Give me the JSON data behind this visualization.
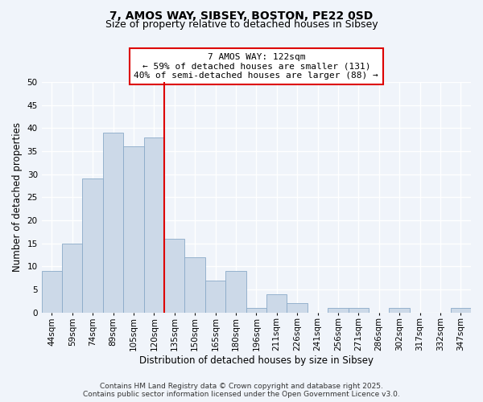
{
  "title": "7, AMOS WAY, SIBSEY, BOSTON, PE22 0SD",
  "subtitle": "Size of property relative to detached houses in Sibsey",
  "xlabel": "Distribution of detached houses by size in Sibsey",
  "ylabel": "Number of detached properties",
  "bar_color": "#ccd9e8",
  "bar_edge_color": "#8aaac8",
  "bin_labels": [
    "44sqm",
    "59sqm",
    "74sqm",
    "89sqm",
    "105sqm",
    "120sqm",
    "135sqm",
    "150sqm",
    "165sqm",
    "180sqm",
    "196sqm",
    "211sqm",
    "226sqm",
    "241sqm",
    "256sqm",
    "271sqm",
    "286sqm",
    "302sqm",
    "317sqm",
    "332sqm",
    "347sqm"
  ],
  "bar_values": [
    9,
    15,
    29,
    39,
    36,
    38,
    16,
    12,
    7,
    9,
    1,
    4,
    2,
    0,
    1,
    1,
    0,
    1,
    0,
    0,
    1
  ],
  "ylim": [
    0,
    50
  ],
  "vline_index": 5,
  "vline_color": "#dd0000",
  "annotation_title": "7 AMOS WAY: 122sqm",
  "annotation_line1": "← 59% of detached houses are smaller (131)",
  "annotation_line2": "40% of semi-detached houses are larger (88) →",
  "footer1": "Contains HM Land Registry data © Crown copyright and database right 2025.",
  "footer2": "Contains public sector information licensed under the Open Government Licence v3.0.",
  "background_color": "#f0f4fa",
  "grid_color": "#ffffff",
  "title_fontsize": 10,
  "subtitle_fontsize": 9,
  "axis_label_fontsize": 8.5,
  "tick_fontsize": 7.5,
  "annot_fontsize": 8,
  "footer_fontsize": 6.5
}
